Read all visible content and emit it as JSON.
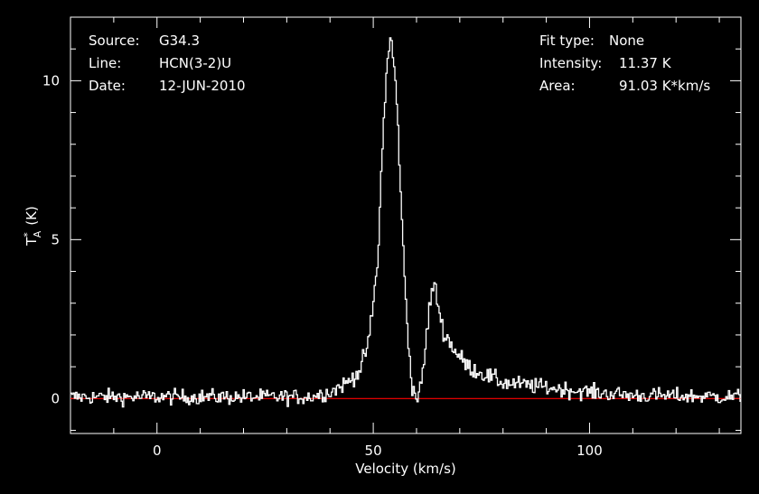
{
  "info_left": {
    "source_label": "Source:",
    "source_value": "G34.3",
    "line_label": "Line:",
    "line_value": "HCN(3-2)U",
    "date_label": "Date:",
    "date_value": "12-JUN-2010"
  },
  "info_right": {
    "fit_label": "Fit type:",
    "fit_value": "None",
    "intensity_label": "Intensity:",
    "intensity_value": "11.37 K",
    "area_label": "Area:",
    "area_value": "91.03 K*km/s"
  },
  "chart_data": {
    "type": "line",
    "title": "",
    "xlabel": "Velocity (km/s)",
    "ylabel_main": "T",
    "ylabel_sup": "*",
    "ylabel_sub": "A",
    "ylabel_unit": "(K)",
    "xlim": [
      -20,
      135
    ],
    "ylim": [
      -1.1,
      12.0
    ],
    "xticks": [
      0,
      50,
      100
    ],
    "yticks": [
      0,
      5,
      10
    ],
    "colors": {
      "spectrum": "#ffffff",
      "baseline": "#ff0000",
      "axes": "#ffffff",
      "background": "#000000"
    },
    "baseline": 0,
    "noise_rms": 0.2,
    "series": [
      {
        "x": [
          -20,
          35,
          40,
          44,
          47,
          49,
          51,
          52,
          53,
          54,
          55,
          56,
          57,
          58,
          59,
          60,
          61,
          62,
          63,
          64,
          65,
          66,
          68,
          70,
          72,
          75,
          80,
          90,
          100,
          110,
          135
        ],
        "y": [
          0.05,
          0.05,
          0.2,
          0.5,
          0.9,
          1.8,
          4.2,
          7.5,
          10.2,
          11.37,
          10.3,
          7.8,
          4.4,
          2.0,
          0.4,
          0.0,
          0.3,
          1.5,
          2.9,
          3.6,
          3.0,
          2.2,
          1.7,
          1.3,
          1.0,
          0.8,
          0.5,
          0.35,
          0.2,
          0.1,
          0.05
        ]
      }
    ]
  }
}
